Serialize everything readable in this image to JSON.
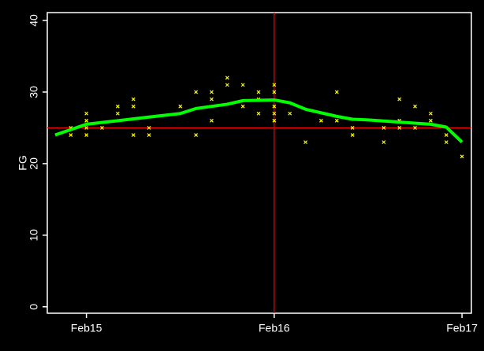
{
  "chart_data": {
    "type": "scatter",
    "ylabel": "FG",
    "xlim": [
      -2.5,
      24.6
    ],
    "ylim": [
      -0.9,
      41.1
    ],
    "xticks": [
      {
        "value": 0,
        "label": "Feb15"
      },
      {
        "value": 12,
        "label": "Feb16"
      },
      {
        "value": 24,
        "label": "Feb17"
      }
    ],
    "yticks": [
      0,
      10,
      20,
      30,
      40
    ],
    "points": {
      "color": "#ffff00",
      "x": [
        -1,
        -1,
        0,
        0,
        0,
        0,
        1,
        2,
        2,
        3,
        3,
        3,
        4,
        4,
        6,
        7,
        7,
        8,
        8,
        8,
        9,
        9,
        10,
        10,
        11,
        11,
        11,
        12,
        12,
        12,
        12,
        12,
        13,
        14,
        15,
        16,
        16,
        17,
        17,
        19,
        19,
        20,
        20,
        20,
        21,
        21,
        22,
        22,
        23,
        23,
        24
      ],
      "y": [
        25,
        24,
        27,
        26,
        25,
        24,
        25,
        28,
        27,
        29,
        28,
        24,
        25,
        24,
        28,
        30,
        24,
        30,
        29,
        26,
        32,
        31,
        31,
        28,
        30,
        29,
        27,
        31,
        30,
        28,
        27,
        26,
        27,
        23,
        26,
        30,
        26,
        25,
        24,
        25,
        23,
        29,
        26,
        25,
        28,
        25,
        27,
        26,
        24,
        23,
        21
      ]
    },
    "line": {
      "color": "#00ff00",
      "x": [
        -2,
        0,
        2,
        4,
        6,
        7,
        9,
        10,
        12,
        13,
        14,
        16,
        17,
        18,
        20,
        22,
        23,
        24
      ],
      "y": [
        24,
        25.5,
        26,
        26.5,
        27,
        27.7,
        28.3,
        28.8,
        28.9,
        28.5,
        27.6,
        26.6,
        26.2,
        26.1,
        25.8,
        25.5,
        25.1,
        23
      ]
    },
    "hline": 25,
    "vline": 12,
    "refcolor": "#ff0000"
  }
}
